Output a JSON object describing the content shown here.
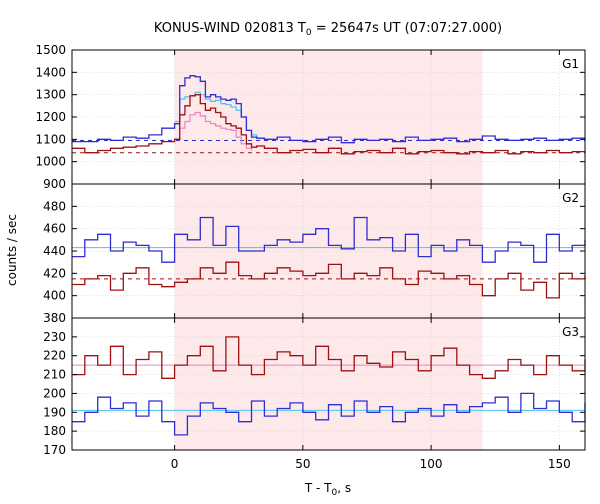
{
  "chart_data": {
    "type": "line",
    "title": "KONUS-WIND 020813 T",
    "title_sub": "0",
    "title_rest": " = 25647s UT (07:07:27.000)",
    "xlabel": "T - T",
    "xlabel_sub": "0",
    "xlabel_rest": ", s",
    "ylabel": "counts / sec",
    "xlim": [
      -40,
      160
    ],
    "xticks": [
      0,
      50,
      100,
      150
    ],
    "shaded_interval": [
      0,
      120
    ],
    "grid": true,
    "colors": {
      "blue": "#2f2fd0",
      "red": "#a01010",
      "cyan": "#4fc1e9",
      "pink": "#f080c0",
      "shade": "#fde8ea"
    },
    "panels": [
      {
        "name": "G1",
        "ylim": [
          900,
          1500
        ],
        "yticks": [
          900,
          1000,
          1100,
          1200,
          1300,
          1400,
          1500
        ],
        "blue_level": 1095,
        "red_level": 1040,
        "blue_series": {
          "x": [
            -40,
            -30,
            -25,
            -20,
            -15,
            -10,
            -5,
            0,
            2,
            4,
            6,
            8,
            10,
            12,
            14,
            16,
            18,
            20,
            22,
            24,
            26,
            28,
            30,
            32,
            35,
            40,
            45,
            50,
            55,
            60,
            65,
            70,
            75,
            80,
            85,
            90,
            95,
            100,
            105,
            110,
            115,
            120,
            125,
            130,
            135,
            140,
            145,
            150,
            155,
            160
          ],
          "y": [
            1090,
            1100,
            1095,
            1110,
            1105,
            1120,
            1150,
            1170,
            1340,
            1375,
            1385,
            1380,
            1360,
            1290,
            1300,
            1290,
            1280,
            1275,
            1280,
            1260,
            1200,
            1140,
            1110,
            1105,
            1100,
            1110,
            1095,
            1090,
            1100,
            1110,
            1085,
            1100,
            1095,
            1100,
            1090,
            1110,
            1095,
            1100,
            1105,
            1090,
            1100,
            1115,
            1100,
            1095,
            1100,
            1105,
            1095,
            1100,
            1105,
            1100
          ]
        },
        "red_series": {
          "x": [
            -40,
            -35,
            -30,
            -25,
            -20,
            -15,
            -10,
            -5,
            0,
            2,
            4,
            6,
            8,
            10,
            12,
            14,
            16,
            18,
            20,
            22,
            24,
            26,
            28,
            30,
            32,
            35,
            40,
            45,
            50,
            55,
            60,
            65,
            70,
            75,
            80,
            85,
            90,
            95,
            100,
            105,
            110,
            115,
            120,
            125,
            130,
            135,
            140,
            145,
            150,
            155,
            160
          ],
          "y": [
            1060,
            1040,
            1050,
            1060,
            1065,
            1070,
            1080,
            1090,
            1100,
            1210,
            1250,
            1295,
            1300,
            1260,
            1230,
            1240,
            1220,
            1200,
            1170,
            1160,
            1150,
            1120,
            1080,
            1065,
            1070,
            1060,
            1040,
            1050,
            1055,
            1040,
            1060,
            1035,
            1045,
            1050,
            1040,
            1060,
            1035,
            1045,
            1050,
            1040,
            1035,
            1045,
            1040,
            1050,
            1035,
            1045,
            1040,
            1050,
            1040,
            1045,
            1040
          ]
        },
        "cyan_series": {
          "x": [
            0,
            2,
            4,
            6,
            8,
            10,
            12,
            14,
            16,
            18,
            20,
            22,
            24,
            26,
            28,
            30,
            32
          ],
          "y": [
            1180,
            1280,
            1290,
            1295,
            1310,
            1300,
            1280,
            1270,
            1275,
            1260,
            1255,
            1245,
            1230,
            1200,
            1140,
            1120,
            1105
          ]
        },
        "pink_series": {
          "x": [
            0,
            2,
            4,
            6,
            8,
            10,
            12,
            14,
            16,
            18,
            20,
            22,
            24,
            26,
            28,
            30
          ],
          "y": [
            1100,
            1150,
            1180,
            1210,
            1220,
            1205,
            1180,
            1170,
            1160,
            1150,
            1145,
            1140,
            1110,
            1080,
            1060,
            1050
          ]
        }
      },
      {
        "name": "G2",
        "ylim": [
          380,
          500
        ],
        "yticks": [
          380,
          400,
          420,
          440,
          460,
          480
        ],
        "blue_level": 443,
        "red_level": 415,
        "blue_series": {
          "x": [
            -40,
            -35,
            -30,
            -25,
            -20,
            -15,
            -10,
            -5,
            0,
            5,
            10,
            15,
            20,
            25,
            30,
            35,
            40,
            45,
            50,
            55,
            60,
            65,
            70,
            75,
            80,
            85,
            90,
            95,
            100,
            105,
            110,
            115,
            120,
            125,
            130,
            135,
            140,
            145,
            150,
            155,
            160
          ],
          "y": [
            435,
            450,
            455,
            440,
            448,
            445,
            440,
            430,
            455,
            450,
            470,
            445,
            462,
            440,
            440,
            445,
            450,
            448,
            455,
            460,
            445,
            442,
            470,
            450,
            452,
            440,
            455,
            435,
            445,
            440,
            450,
            445,
            430,
            440,
            448,
            445,
            430,
            455,
            440,
            445,
            450
          ]
        },
        "red_series": {
          "x": [
            -40,
            -35,
            -30,
            -25,
            -20,
            -15,
            -10,
            -5,
            0,
            5,
            10,
            15,
            20,
            25,
            30,
            35,
            40,
            45,
            50,
            55,
            60,
            65,
            70,
            75,
            80,
            85,
            90,
            95,
            100,
            105,
            110,
            115,
            120,
            125,
            130,
            135,
            140,
            145,
            150,
            155,
            160
          ],
          "y": [
            410,
            415,
            418,
            405,
            420,
            425,
            410,
            408,
            412,
            415,
            425,
            420,
            430,
            418,
            415,
            420,
            425,
            422,
            418,
            420,
            428,
            415,
            420,
            418,
            425,
            415,
            410,
            422,
            420,
            415,
            418,
            410,
            400,
            415,
            420,
            405,
            412,
            398,
            420,
            415,
            418
          ]
        }
      },
      {
        "name": "G3",
        "ylim": [
          170,
          240
        ],
        "yticks": [
          170,
          180,
          190,
          200,
          210,
          220,
          230
        ],
        "blue_level": 191,
        "red_level": 215,
        "blue_series": {
          "x": [
            -40,
            -35,
            -30,
            -25,
            -20,
            -15,
            -10,
            -5,
            0,
            5,
            10,
            15,
            20,
            25,
            30,
            35,
            40,
            45,
            50,
            55,
            60,
            65,
            70,
            75,
            80,
            85,
            90,
            95,
            100,
            105,
            110,
            115,
            120,
            125,
            130,
            135,
            140,
            145,
            150,
            155,
            160
          ],
          "y": [
            185,
            190,
            198,
            192,
            195,
            188,
            196,
            185,
            178,
            188,
            195,
            192,
            190,
            185,
            196,
            188,
            192,
            195,
            190,
            186,
            194,
            188,
            196,
            190,
            193,
            185,
            190,
            192,
            188,
            194,
            190,
            193,
            195,
            198,
            190,
            200,
            192,
            196,
            190,
            185,
            195
          ]
        },
        "red_series": {
          "x": [
            -40,
            -35,
            -30,
            -25,
            -20,
            -15,
            -10,
            -5,
            0,
            5,
            10,
            15,
            20,
            25,
            30,
            35,
            40,
            45,
            50,
            55,
            60,
            65,
            70,
            75,
            80,
            85,
            90,
            95,
            100,
            105,
            110,
            115,
            120,
            125,
            130,
            135,
            140,
            145,
            150,
            155,
            160
          ],
          "y": [
            210,
            220,
            215,
            225,
            210,
            218,
            222,
            208,
            215,
            220,
            225,
            212,
            230,
            215,
            210,
            218,
            222,
            220,
            215,
            225,
            218,
            212,
            220,
            216,
            214,
            222,
            218,
            212,
            220,
            224,
            215,
            210,
            208,
            212,
            218,
            215,
            210,
            220,
            215,
            212,
            218
          ]
        }
      }
    ]
  }
}
